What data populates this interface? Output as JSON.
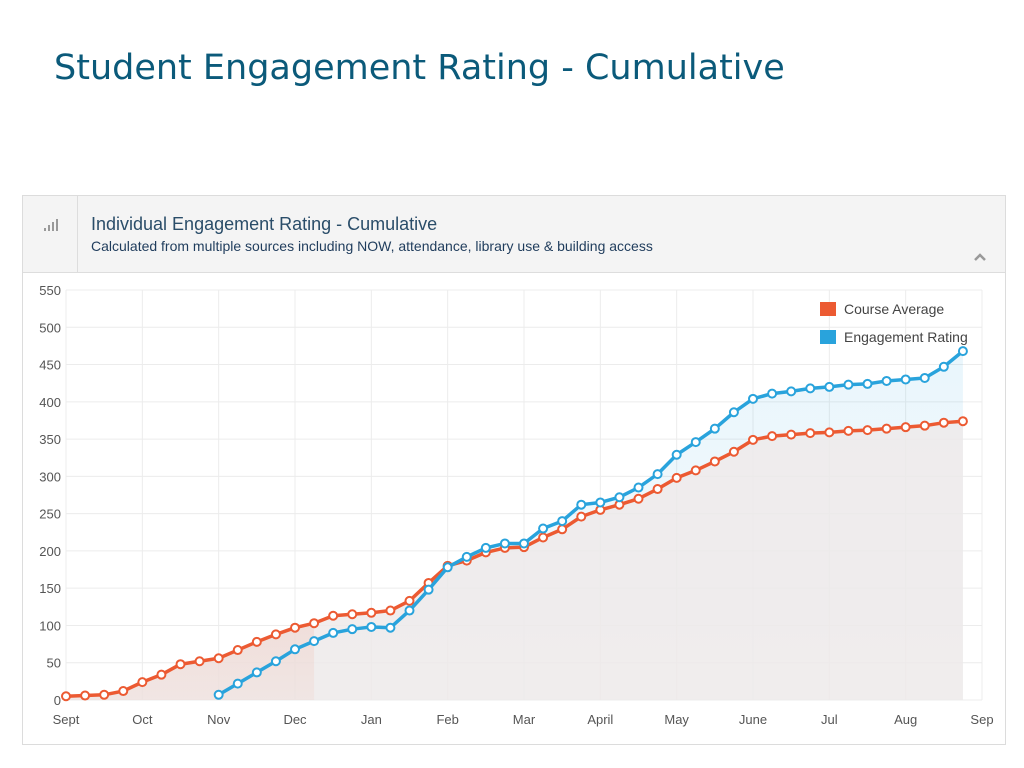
{
  "page": {
    "title": "Student Engagement Rating - Cumulative"
  },
  "panel": {
    "title": "Individual Engagement Rating - Cumulative",
    "subtitle": "Calculated from multiple sources including NOW, attendance, library use & building access",
    "icons": [
      "bar-chart-icon",
      "chevron-up-icon"
    ]
  },
  "colors": {
    "course_average": "#ec5a32",
    "engagement_rating": "#29a3dc"
  },
  "chart_data": {
    "type": "line",
    "title": "",
    "xlabel": "",
    "ylabel": "",
    "ylim": [
      0,
      550
    ],
    "y_ticks": [
      0,
      50,
      100,
      150,
      200,
      250,
      300,
      350,
      400,
      450,
      500,
      550
    ],
    "x_ticks": [
      "Sept",
      "Oct",
      "Nov",
      "Dec",
      "Jan",
      "Feb",
      "Mar",
      "April",
      "May",
      "June",
      "Jul",
      "Aug",
      "Sep"
    ],
    "x_range_months": [
      0,
      12
    ],
    "grid": true,
    "legend": "top-right",
    "series": [
      {
        "name": "Course Average",
        "x": [
          0,
          0.25,
          0.5,
          0.75,
          1,
          1.25,
          1.5,
          1.75,
          2,
          2.25,
          2.5,
          2.75,
          3,
          3.25,
          3.5,
          3.75,
          4,
          4.25,
          4.5,
          4.75,
          5,
          5.25,
          5.5,
          5.75,
          6,
          6.25,
          6.5,
          6.75,
          7,
          7.25,
          7.5,
          7.75,
          8,
          8.25,
          8.5,
          8.75,
          9,
          9.25,
          9.5,
          9.75,
          10,
          10.25,
          10.5,
          10.75,
          11,
          11.25,
          11.5,
          11.75
        ],
        "values": [
          5,
          6,
          7,
          12,
          24,
          34,
          48,
          52,
          56,
          67,
          78,
          88,
          97,
          103,
          113,
          115,
          117,
          120,
          133,
          157,
          180,
          187,
          198,
          204,
          205,
          218,
          229,
          246,
          255,
          262,
          270,
          283,
          298,
          308,
          320,
          333,
          349,
          354,
          356,
          358,
          359,
          361,
          362,
          364,
          366,
          368,
          372,
          374
        ]
      },
      {
        "name": "Engagement Rating",
        "x": [
          2,
          2.25,
          2.5,
          2.75,
          3,
          3.25,
          3.5,
          3.75,
          4,
          4.25,
          4.5,
          4.75,
          5,
          5.25,
          5.5,
          5.75,
          6,
          6.25,
          6.5,
          6.75,
          7,
          7.25,
          7.5,
          7.75,
          8,
          8.25,
          8.5,
          8.75,
          9,
          9.25,
          9.5,
          9.75,
          10,
          10.25,
          10.5,
          10.75,
          11,
          11.25,
          11.5
        ],
        "values": [
          7,
          22,
          37,
          52,
          68,
          79,
          90,
          95,
          98,
          97,
          120,
          148,
          178,
          192,
          204,
          210,
          210,
          230,
          240,
          262,
          265,
          272,
          285,
          303,
          329,
          346,
          364,
          386,
          404,
          411,
          414,
          418,
          420,
          423,
          424,
          428,
          430,
          432,
          447
        ]
      }
    ],
    "extra_points_engagement": {
      "x": [
        11.75
      ],
      "values": [
        468
      ]
    }
  }
}
